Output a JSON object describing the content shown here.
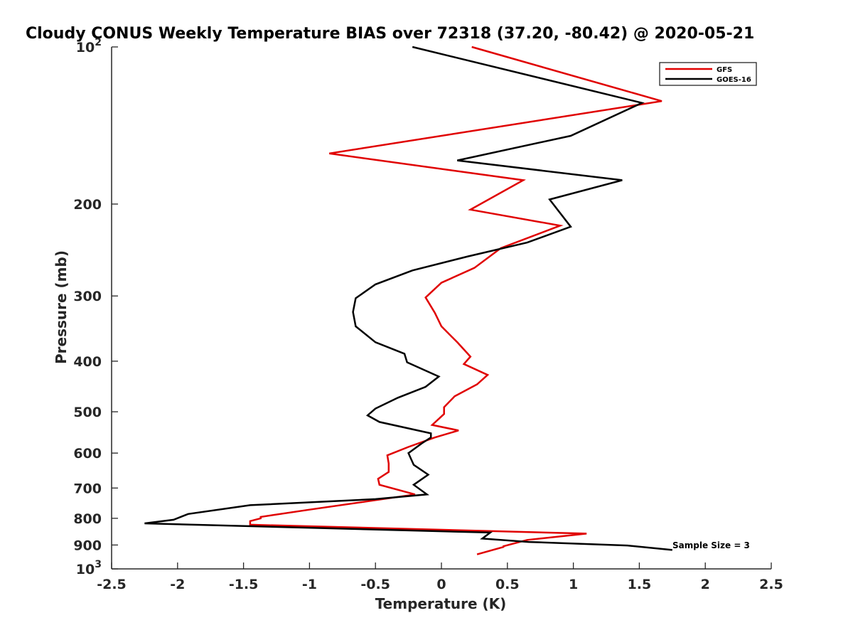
{
  "chart_data": {
    "type": "line",
    "title": "Cloudy CONUS Weekly Temperature BIAS over 72318 (37.20, -80.42) @ 2020-05-21",
    "xlabel": "Temperature (K)",
    "ylabel": "Pressure (mb)",
    "xlim": [
      -2.5,
      2.5
    ],
    "ylim": [
      100,
      1000
    ],
    "yscale": "log",
    "y_reversed": true,
    "x_ticks": [
      "-2.5",
      "-2",
      "-1.5",
      "-1",
      "-0.5",
      "0",
      "0.5",
      "1",
      "1.5",
      "2",
      "2.5"
    ],
    "y_ticks": [
      {
        "value": 100,
        "label": "10",
        "sup": "2"
      },
      {
        "value": 200,
        "label": "200"
      },
      {
        "value": 300,
        "label": "300"
      },
      {
        "value": 400,
        "label": "400"
      },
      {
        "value": 500,
        "label": "500"
      },
      {
        "value": 600,
        "label": "600"
      },
      {
        "value": 700,
        "label": "700"
      },
      {
        "value": 800,
        "label": "800"
      },
      {
        "value": 900,
        "label": "900"
      },
      {
        "value": 1000,
        "label": "10",
        "sup": "3"
      }
    ],
    "grid": false,
    "legend_position": "top-right",
    "series": [
      {
        "name": "GFS",
        "color": "#e00000",
        "x": [
          0.23,
          1.67,
          -0.85,
          0.62,
          0.22,
          0.9,
          0.45,
          0.25,
          0.0,
          -0.12,
          -0.05,
          0.0,
          0.12,
          0.22,
          0.17,
          0.35,
          0.27,
          0.1,
          0.02,
          0.02,
          -0.07,
          0.13,
          -0.05,
          -0.25,
          -0.41,
          -0.4,
          -0.4,
          -0.48,
          -0.47,
          -0.2,
          -1.0,
          -1.37,
          -1.37,
          -1.45,
          -1.45,
          1.1,
          0.65,
          0.47,
          0.47,
          0.27
        ],
        "y": [
          100,
          127,
          160,
          180,
          205,
          220,
          243,
          265,
          283,
          302,
          323,
          343,
          368,
          392,
          405,
          425,
          443,
          467,
          490,
          505,
          530,
          543,
          560,
          584,
          606,
          628,
          652,
          672,
          690,
          720,
          770,
          795,
          800,
          810,
          823,
          856,
          880,
          905,
          908,
          938
        ]
      },
      {
        "name": "GOES-16",
        "color": "#000000",
        "x": [
          -0.22,
          1.52,
          0.98,
          0.12,
          1.37,
          0.82,
          0.98,
          0.65,
          0.2,
          -0.22,
          -0.5,
          -0.65,
          -0.67,
          -0.65,
          -0.5,
          -0.28,
          -0.26,
          -0.02,
          -0.12,
          -0.33,
          -0.5,
          -0.56,
          -0.47,
          -0.08,
          -0.08,
          -0.15,
          -0.25,
          -0.21,
          -0.1,
          -0.21,
          -0.11,
          -0.5,
          -1.45,
          -1.92,
          -2.03,
          -2.25,
          0.37,
          0.31,
          0.66,
          1.41,
          1.75
        ],
        "y": [
          100,
          128,
          148,
          165,
          180,
          196,
          221,
          237,
          252,
          268,
          285,
          303,
          322,
          343,
          368,
          387,
          402,
          428,
          448,
          470,
          493,
          508,
          523,
          550,
          560,
          575,
          600,
          632,
          660,
          690,
          720,
          735,
          755,
          785,
          805,
          818,
          852,
          875,
          888,
          902,
          920
        ]
      }
    ],
    "annotations": [
      {
        "text": "Sample Size = 3",
        "x": 1.75,
        "y": 900
      }
    ]
  }
}
